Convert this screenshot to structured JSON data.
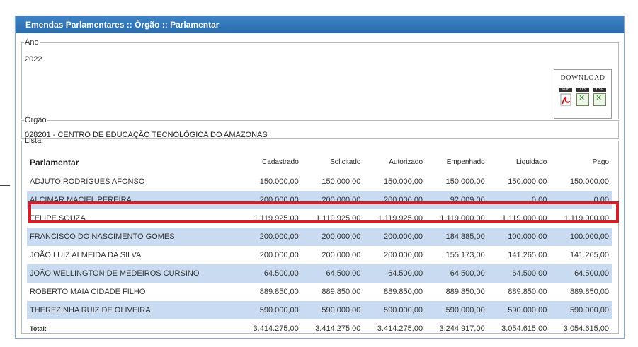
{
  "panel": {
    "title": "Emendas Parlamentares :: Órgão :: Parlamentar"
  },
  "ano": {
    "legend": "Ano",
    "value": "2022"
  },
  "download": {
    "title": "DOWNLOAD",
    "items": [
      {
        "tag": "PDF",
        "icon": "pdf-icon"
      },
      {
        "tag": "XLS",
        "icon": "xls-icon"
      },
      {
        "tag": "CSV",
        "icon": "csv-icon"
      }
    ]
  },
  "orgao": {
    "legend": "Órgão",
    "value": "028201 - CENTRO DE EDUCAÇÃO TECNOLÓGICA DO AMAZONAS"
  },
  "lista": {
    "legend": "Lista",
    "columns": [
      "Parlamentar",
      "Cadastrado",
      "Solicitado",
      "Autorizado",
      "Empenhado",
      "Liquidado",
      "Pago"
    ],
    "rows": [
      [
        "ADJUTO RODRIGUES AFONSO",
        "150.000,00",
        "150.000,00",
        "150.000,00",
        "150.000,00",
        "150.000,00",
        "150.000,00"
      ],
      [
        "ALCIMAR MACIEL PEREIRA",
        "200.000,00",
        "200.000,00",
        "200.000,00",
        "92.009,00",
        "0,00",
        "0,00"
      ],
      [
        "FELIPE SOUZA",
        "1.119.925,00",
        "1.119.925,00",
        "1.119.925,00",
        "1.119.000,00",
        "1.119.000,00",
        "1.119.000,00"
      ],
      [
        "FRANCISCO DO NASCIMENTO GOMES",
        "200.000,00",
        "200.000,00",
        "200.000,00",
        "184.385,00",
        "100.000,00",
        "100.000,00"
      ],
      [
        "JOÃO LUIZ ALMEIDA DA SILVA",
        "200.000,00",
        "200.000,00",
        "200.000,00",
        "155.173,00",
        "141.265,00",
        "141.265,00"
      ],
      [
        "JOÃO WELLINGTON DE MEDEIROS CURSINO",
        "64.500,00",
        "64.500,00",
        "64.500,00",
        "64.500,00",
        "64.500,00",
        "64.500,00"
      ],
      [
        "ROBERTO MAIA CIDADE FILHO",
        "889.850,00",
        "889.850,00",
        "889.850,00",
        "889.850,00",
        "889.850,00",
        "889.850,00"
      ],
      [
        "THEREZINHA RUIZ DE OLIVEIRA",
        "590.000,00",
        "590.000,00",
        "590.000,00",
        "590.000,00",
        "590.000,00",
        "590.000,00"
      ]
    ],
    "total": [
      "Total:",
      "3.414.275,00",
      "3.414.275,00",
      "3.414.275,00",
      "3.244.917,00",
      "3.054.615,00",
      "3.054.615,00"
    ]
  },
  "highlight_color": "#d0212b",
  "header_color": "#2b73b7",
  "alt_row_color": "#c9dbf1"
}
